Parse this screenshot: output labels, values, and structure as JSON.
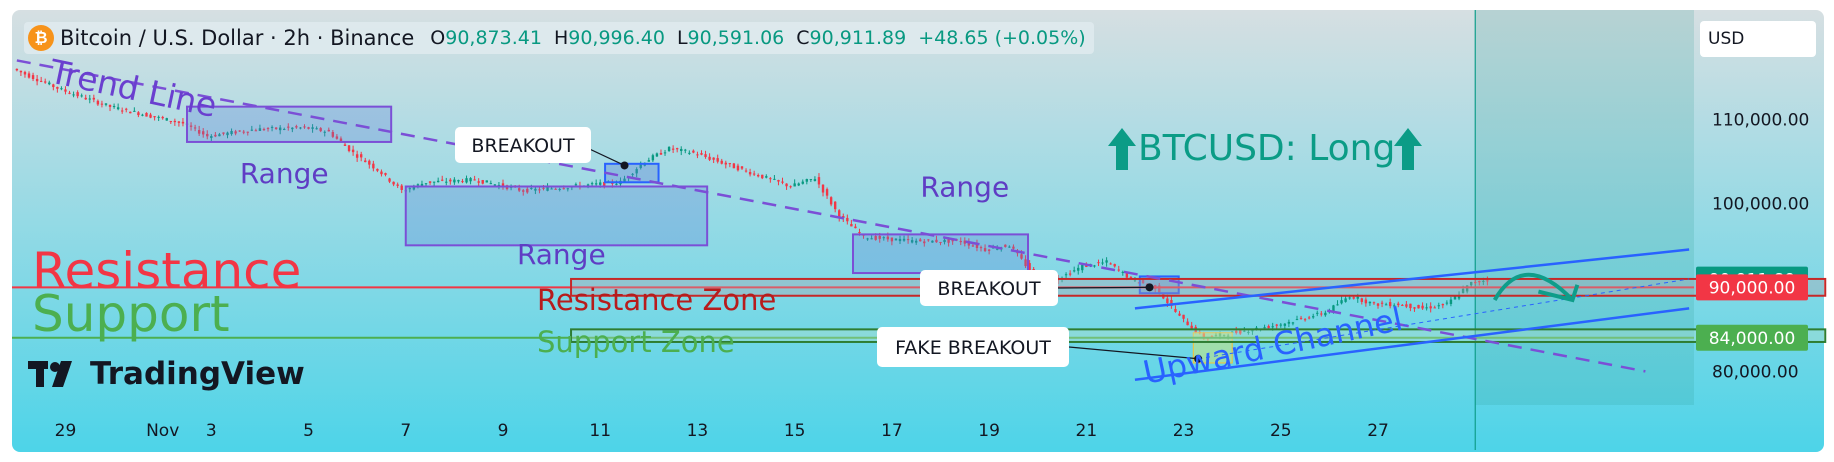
{
  "header": {
    "symbol_title": "Bitcoin / U.S. Dollar · 2h · Binance",
    "logo_glyph": "₿",
    "open_label": "O",
    "open_value": "90,873.41",
    "high_label": "H",
    "high_value": "90,996.40",
    "low_label": "L",
    "low_value": "90,591.06",
    "close_label": "C",
    "close_value": "90,911.89",
    "change": "+48.65 (+0.05%)"
  },
  "currency": "USD",
  "brand": "TradingView",
  "colors": {
    "background_top": "#d6dfe2",
    "background_bottom": "#4dd4e8",
    "up_candle": "#089981",
    "down_candle": "#f23645",
    "trend": "#7b4fd6",
    "channel": "#2962ff",
    "resistance": "#f23645",
    "support": "#4caf50",
    "long_text": "#0b9c86"
  },
  "chart_data": {
    "type": "candlestick",
    "y_axis": {
      "ticks": [
        80000,
        100000,
        110000
      ],
      "tick_labels": [
        "80,000.00",
        "100,000.00",
        "110,000.00"
      ],
      "ylim": [
        76000,
        123000
      ]
    },
    "x_axis": {
      "tick_labels": [
        "29",
        "Nov",
        "3",
        "5",
        "7",
        "9",
        "11",
        "13",
        "15",
        "17",
        "19",
        "21",
        "23",
        "25",
        "27"
      ],
      "start_day": -3.1,
      "end_day": 31.5
    },
    "price_path": [
      [
        -3.0,
        116000
      ],
      [
        -2.0,
        113500
      ],
      [
        -1.0,
        111500
      ],
      [
        0.5,
        109500
      ],
      [
        1.0,
        108000
      ],
      [
        2.0,
        108800
      ],
      [
        3.0,
        109000
      ],
      [
        3.5,
        108500
      ],
      [
        4.0,
        106000
      ],
      [
        4.5,
        104000
      ],
      [
        5.0,
        101500
      ],
      [
        5.5,
        102500
      ],
      [
        6.5,
        102800
      ],
      [
        7.5,
        101500
      ],
      [
        8.5,
        102000
      ],
      [
        9.5,
        102500
      ],
      [
        10.0,
        105000
      ],
      [
        10.5,
        106500
      ],
      [
        11.0,
        106000
      ],
      [
        12.0,
        104000
      ],
      [
        13.0,
        102000
      ],
      [
        13.5,
        103000
      ],
      [
        14.0,
        98500
      ],
      [
        14.5,
        96000
      ],
      [
        15.5,
        95500
      ],
      [
        16.5,
        95500
      ],
      [
        17.0,
        94500
      ],
      [
        17.5,
        95000
      ],
      [
        18.0,
        91500
      ],
      [
        18.5,
        91000
      ],
      [
        19.0,
        92500
      ],
      [
        19.5,
        93000
      ],
      [
        20.0,
        91000
      ],
      [
        20.5,
        90000
      ],
      [
        21.0,
        86500
      ],
      [
        21.5,
        84000
      ],
      [
        22.0,
        84500
      ],
      [
        22.5,
        85000
      ],
      [
        23.0,
        85500
      ],
      [
        24.0,
        87000
      ],
      [
        24.5,
        89000
      ],
      [
        25.0,
        88000
      ],
      [
        25.5,
        88000
      ],
      [
        26.0,
        87500
      ],
      [
        26.5,
        88000
      ],
      [
        27.0,
        90500
      ],
      [
        27.3,
        90911.89
      ]
    ],
    "price_labels": [
      {
        "text": "90,911.89",
        "value": 90911.89,
        "color": "#089981"
      },
      {
        "text": "90,000.00",
        "value": 90000,
        "color": "#f23645"
      },
      {
        "text": "84,000.00",
        "value": 84000,
        "color": "#4caf50"
      }
    ],
    "levels": {
      "resistance": 90000,
      "support": 84000
    },
    "zones": {
      "resistance_zone": {
        "x": [
          8.4,
          34.2
        ],
        "y": [
          89000,
          91000
        ]
      },
      "support_zone": {
        "x": [
          8.4,
          34.2
        ],
        "y": [
          83500,
          85000
        ]
      }
    },
    "ranges": [
      {
        "label": "Range",
        "x": [
          0.5,
          4.7
        ],
        "y": [
          107300,
          111500
        ]
      },
      {
        "label": "Range",
        "x": [
          5.0,
          11.2
        ],
        "y": [
          95000,
          102000
        ]
      },
      {
        "label": "Range",
        "x": [
          14.2,
          17.8
        ],
        "y": [
          91700,
          96300
        ]
      }
    ],
    "trend_line": {
      "from": [
        -3.0,
        117000
      ],
      "to": [
        30.5,
        80000
      ]
    },
    "channel": {
      "upper": {
        "from": [
          20.0,
          87500
        ],
        "to": [
          31.4,
          94500
        ]
      },
      "lower": {
        "from": [
          20.0,
          79000
        ],
        "to": [
          31.4,
          87500
        ]
      }
    },
    "breakouts": [
      {
        "label": "BREAKOUT",
        "point": [
          9.5,
          104500
        ]
      },
      {
        "label": "BREAKOUT",
        "point": [
          20.3,
          90000
        ]
      },
      {
        "label": "FAKE BREAKOUT",
        "point": [
          21.3,
          81500
        ]
      }
    ],
    "annotations": {
      "trend_line": "Trend Line",
      "resistance": "Resistance",
      "support": "Support",
      "resistance_zone": "Resistance Zone",
      "support_zone": "Support Zone",
      "upward_channel": "Upward Channel",
      "long_idea": "BTCUSD: Long"
    },
    "current_time_day": 27.0
  }
}
